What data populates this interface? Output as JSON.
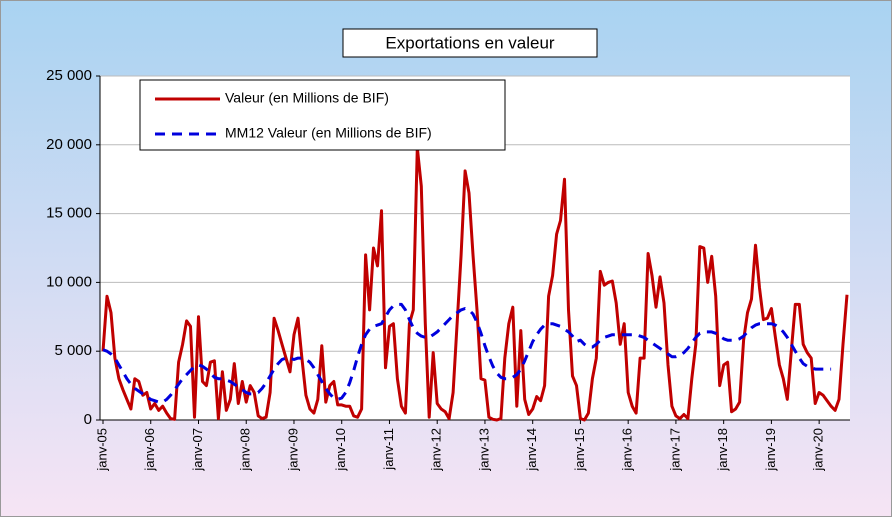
{
  "chart_data": {
    "type": "line",
    "title": "Exportations en valeur",
    "categories": [
      "janv-05",
      null,
      null,
      null,
      null,
      null,
      null,
      null,
      null,
      null,
      null,
      null,
      "janv-06",
      null,
      null,
      null,
      null,
      null,
      null,
      null,
      null,
      null,
      null,
      null,
      "janv-07",
      null,
      null,
      null,
      null,
      null,
      null,
      null,
      null,
      null,
      null,
      null,
      "janv-08",
      null,
      null,
      null,
      null,
      null,
      null,
      null,
      null,
      null,
      null,
      null,
      "janv-09",
      null,
      null,
      null,
      null,
      null,
      null,
      null,
      null,
      null,
      null,
      null,
      "janv-10",
      null,
      null,
      null,
      null,
      null,
      null,
      null,
      null,
      null,
      null,
      null,
      "janv-11",
      null,
      null,
      null,
      null,
      null,
      null,
      null,
      null,
      null,
      null,
      null,
      "janv-12",
      null,
      null,
      null,
      null,
      null,
      null,
      null,
      null,
      null,
      null,
      null,
      "janv-13",
      null,
      null,
      null,
      null,
      null,
      null,
      null,
      null,
      null,
      null,
      null,
      "janv-14",
      null,
      null,
      null,
      null,
      null,
      null,
      null,
      null,
      null,
      null,
      null,
      "janv-15",
      null,
      null,
      null,
      null,
      null,
      null,
      null,
      null,
      null,
      null,
      null,
      "janv-16",
      null,
      null,
      null,
      null,
      null,
      null,
      null,
      null,
      null,
      null,
      null,
      "janv-17",
      null,
      null,
      null,
      null,
      null,
      null,
      null,
      null,
      null,
      null,
      null,
      "janv-18",
      null,
      null,
      null,
      null,
      null,
      null,
      null,
      null,
      null,
      null,
      null,
      "janv-19",
      null,
      null,
      null,
      null,
      null,
      null,
      null,
      null,
      null,
      null,
      null,
      "janv-20",
      null,
      null,
      null,
      null,
      null,
      null,
      null
    ],
    "series": [
      {
        "name": "Valeur (en Millions de BIF)",
        "color": "#c00000",
        "dash": false,
        "values": [
          5000,
          9000,
          7800,
          4500,
          3000,
          2200,
          1500,
          800,
          3000,
          2800,
          1800,
          2000,
          800,
          1200,
          700,
          1000,
          500,
          100,
          50,
          4200,
          5500,
          7200,
          6800,
          200,
          7500,
          2800,
          2500,
          4200,
          4300,
          100,
          3500,
          700,
          1500,
          4100,
          1200,
          2800,
          1300,
          2500,
          2000,
          300,
          100,
          200,
          2000,
          7400,
          6500,
          5500,
          4500,
          3500,
          6200,
          7400,
          4500,
          1800,
          800,
          500,
          1500,
          5400,
          1300,
          2500,
          2800,
          1100,
          1100,
          1000,
          1000,
          300,
          200,
          800,
          12000,
          8000,
          12500,
          11200,
          15200,
          3800,
          6800,
          7000,
          3000,
          1000,
          500,
          7000,
          8000,
          19800,
          17000,
          7000,
          200,
          4900,
          1200,
          800,
          600,
          100,
          2000,
          7000,
          12000,
          18100,
          16500,
          12000,
          8000,
          3000,
          2900,
          200,
          50,
          0,
          100,
          4500,
          7000,
          8200,
          1000,
          6500,
          1500,
          400,
          800,
          1700,
          1400,
          2500,
          9000,
          10500,
          13500,
          14500,
          17500,
          8000,
          3200,
          2500,
          100,
          0,
          500,
          3000,
          4500,
          10800,
          9800,
          10000,
          10100,
          8500,
          5500,
          7000,
          2000,
          1000,
          500,
          4500,
          4500,
          12100,
          10500,
          8200,
          10400,
          8500,
          4000,
          1000,
          300,
          100,
          400,
          100,
          3000,
          5500,
          12600,
          12500,
          10000,
          11900,
          9000,
          2500,
          4000,
          4200,
          600,
          800,
          1300,
          5800,
          7800,
          8800,
          12700,
          9600,
          7300,
          7400,
          8100,
          6000,
          4000,
          3000,
          1500,
          5000,
          8400,
          8400,
          5500,
          4900,
          4500,
          1200,
          2000,
          1800,
          1400,
          1000,
          700,
          1500,
          5500,
          9100
        ]
      },
      {
        "name": "MM12 Valeur (en Millions de BIF)",
        "color": "#0000dd",
        "dash": true,
        "values": [
          5100,
          5000,
          4800,
          4500,
          4000,
          3500,
          3000,
          2600,
          2300,
          2100,
          1900,
          1700,
          1500,
          1400,
          1300,
          1300,
          1500,
          1800,
          2200,
          2600,
          3000,
          3300,
          3600,
          3900,
          4000,
          3900,
          3700,
          3400,
          3100,
          3000,
          3000,
          2900,
          2800,
          2600,
          2400,
          2200,
          2000,
          1900,
          1900,
          2000,
          2300,
          2700,
          3200,
          3700,
          4100,
          4400,
          4500,
          4500,
          4400,
          4500,
          4500,
          4400,
          4200,
          3800,
          3300,
          2800,
          2300,
          1900,
          1600,
          1500,
          1600,
          2000,
          2700,
          3600,
          4600,
          5500,
          6200,
          6600,
          6800,
          6900,
          7000,
          7500,
          8000,
          8300,
          8400,
          8400,
          8000,
          7300,
          6700,
          6300,
          6100,
          6000,
          6000,
          6200,
          6400,
          6700,
          7000,
          7300,
          7600,
          7800,
          8000,
          8100,
          8000,
          7700,
          7100,
          6300,
          5400,
          4600,
          3900,
          3400,
          3100,
          3000,
          3000,
          3100,
          3300,
          3700,
          4300,
          5000,
          5700,
          6200,
          6600,
          6900,
          7000,
          7000,
          6900,
          6800,
          6600,
          6400,
          6100,
          5700,
          5800,
          5500,
          5300,
          5300,
          5500,
          5800,
          6000,
          6100,
          6200,
          6200,
          6200,
          6200,
          6200,
          6200,
          6200,
          6100,
          6000,
          5800,
          5600,
          5400,
          5200,
          5000,
          4800,
          4600,
          4600,
          4700,
          4900,
          5200,
          5600,
          6000,
          6300,
          6400,
          6400,
          6400,
          6300,
          6100,
          5900,
          5800,
          5800,
          5800,
          5900,
          6100,
          6400,
          6700,
          6900,
          7000,
          7000,
          7000,
          7000,
          6900,
          6700,
          6400,
          6000,
          5500,
          5000,
          4500,
          4100,
          3900,
          3800,
          3700,
          3700,
          3700,
          3700,
          3700,
          null,
          null,
          null,
          null
        ]
      }
    ],
    "ylim": [
      0,
      25000
    ],
    "yticks": [
      0,
      {
        "value": 5000,
        "label": "5 000"
      },
      {
        "value": 10000,
        "label": "10 000"
      },
      {
        "value": 15000,
        "label": "15 000"
      },
      {
        "value": 20000,
        "label": "20 000"
      },
      {
        "value": 25000,
        "label": "25 000"
      }
    ],
    "grid": true,
    "legend": "top-left"
  }
}
